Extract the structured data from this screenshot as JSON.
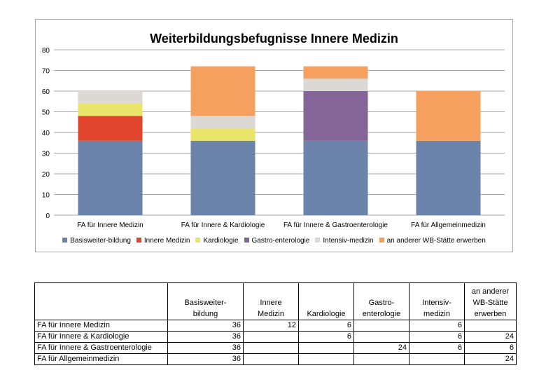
{
  "chart_data": {
    "type": "bar",
    "stacked": true,
    "title": "Weiterbildungsbefugnisse Innere Medizin",
    "xlabel": "",
    "ylabel": "",
    "ylim": [
      0,
      80
    ],
    "yticks": [
      0,
      10,
      20,
      30,
      40,
      50,
      60,
      70,
      80
    ],
    "grid": true,
    "legend_position": "bottom",
    "categories": [
      "FA für Innere Medizin",
      "FA für Innere & Kardiologie",
      "FA für Innere & Gastroenterologie",
      "FA für Allgemeinmedizin"
    ],
    "series": [
      {
        "name": "Basisweiter-bildung",
        "color": "#6b82ab",
        "values": [
          36,
          36,
          36,
          36
        ]
      },
      {
        "name": "Innere Medizin",
        "color": "#e2452e",
        "values": [
          12,
          0,
          0,
          0
        ]
      },
      {
        "name": "Kardiologie",
        "color": "#e9e46a",
        "values": [
          6,
          6,
          0,
          0
        ]
      },
      {
        "name": "Gastro-enterologie",
        "color": "#836697",
        "values": [
          0,
          0,
          24,
          0
        ]
      },
      {
        "name": "Intensiv-medizin",
        "color": "#dcd8d4",
        "values": [
          6,
          6,
          6,
          0
        ]
      },
      {
        "name": "an anderer WB-Stätte erwerben",
        "color": "#f5a05f",
        "values": [
          0,
          24,
          6,
          24
        ]
      }
    ]
  },
  "table": {
    "headers": [
      "",
      "Basisweiter-\nbildung",
      "Innere\nMedizin",
      "Kardiologie",
      "Gastro-\nenterologie",
      "Intensiv-\nmedizin",
      "an anderer\nWB-Stätte\nerwerben"
    ],
    "rows": [
      {
        "label": "FA für Innere Medizin",
        "cells": [
          "36",
          "12",
          "6",
          "",
          "6",
          ""
        ]
      },
      {
        "label": "FA für Innere & Kardiologie",
        "cells": [
          "36",
          "",
          "6",
          "",
          "6",
          "24"
        ]
      },
      {
        "label": "FA für Innere & Gastroenterologie",
        "cells": [
          "36",
          "",
          "",
          "24",
          "6",
          "6"
        ]
      },
      {
        "label": "FA für Allgemeinmedizin",
        "cells": [
          "36",
          "",
          "",
          "",
          "",
          "24"
        ]
      }
    ]
  }
}
